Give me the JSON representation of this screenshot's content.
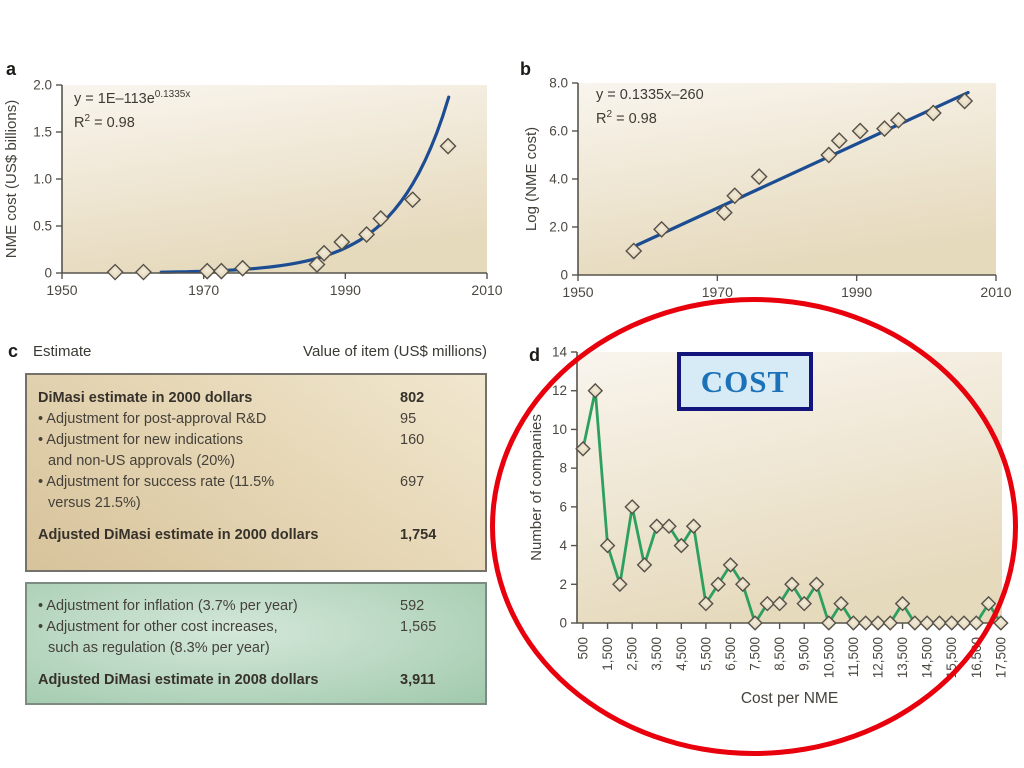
{
  "panels": {
    "a": {
      "label": "a",
      "eq_base": "y = 1E–113e",
      "eq_sup": "0.1335x",
      "r2_base": "R",
      "r2_sup": "2",
      "r2_rest": " = 0.98"
    },
    "b": {
      "label": "b",
      "eq_line": "y = 0.1335x–260",
      "r2_base": "R",
      "r2_sup": "2",
      "r2_rest": " = 0.98"
    },
    "c": {
      "label": "c",
      "header_col1": "Estimate",
      "header_col2": "Value of item (US$ millions)"
    },
    "d": {
      "label": "d"
    }
  },
  "annotations": {
    "cost_label": "COST",
    "ellipse_color": "#e8000d",
    "cost_text_color": "#1c72b8",
    "cost_bg_color": "#d7ebf7",
    "cost_border_color": "#14147d"
  },
  "colors": {
    "fit_line_blue": "#1c4d92",
    "series_green": "#2da05f",
    "marker_fill": "#e9dfc6",
    "marker_edge": "#56504a",
    "plot_bg_light": "#f9f5ee",
    "plot_bg_dark": "#e6dabd",
    "axis": "#57544c",
    "tan_box_border": "#73716a",
    "green_box_border": "#7d8c80"
  },
  "estimate_table": {
    "header_col1": "Estimate",
    "header_col2": "Value of item (US$ millions)",
    "box1_rows": [
      {
        "label": "DiMasi estimate in 2000 dollars",
        "value": "802",
        "bold": true,
        "bullet": false
      },
      {
        "label": "Adjustment for post-approval R&D",
        "value": "95",
        "bold": false,
        "bullet": true
      },
      {
        "label": "Adjustment for new indications",
        "label2": "and non-US approvals (20%)",
        "value": "160",
        "bold": false,
        "bullet": true
      },
      {
        "label": "Adjustment for success rate (11.5%",
        "label2": "versus 21.5%)",
        "value": "697",
        "bold": false,
        "bullet": true
      },
      {
        "label": "Adjusted DiMasi estimate in 2000 dollars",
        "value": "1,754",
        "bold": true,
        "bullet": false,
        "gap": true
      }
    ],
    "box2_rows": [
      {
        "label": "Adjustment for inflation (3.7% per year)",
        "value": "592",
        "bold": false,
        "bullet": true
      },
      {
        "label": "Adjustment for other cost increases,",
        "label2": "such as regulation (8.3% per year)",
        "value": "1,565",
        "bold": false,
        "bullet": true
      },
      {
        "label": "Adjusted DiMasi estimate in 2008 dollars",
        "value": "3,911",
        "bold": true,
        "bullet": false,
        "gap": true
      }
    ]
  },
  "chart_data": [
    {
      "id": "a",
      "type": "scatter",
      "title": "",
      "xlabel": "",
      "ylabel": "NME cost (US$ billions)",
      "xlim": [
        1950,
        2010
      ],
      "ylim": [
        0,
        2.0
      ],
      "xticks": [
        1950,
        1970,
        1990,
        2010
      ],
      "xtick_labels": [
        "1950",
        "1970",
        "1990",
        "2010"
      ],
      "yticks": [
        0,
        0.5,
        1.0,
        1.5,
        2.0
      ],
      "ytick_labels": [
        "0",
        "0.5",
        "1.0",
        "1.5",
        "2.0"
      ],
      "equation": "y = 1E–113e^0.1335x",
      "r_squared": "R² = 0.98",
      "points": [
        [
          1957.5,
          0.01
        ],
        [
          1961.5,
          0.01
        ],
        [
          1970.5,
          0.02
        ],
        [
          1972.5,
          0.02
        ],
        [
          1975.5,
          0.05
        ],
        [
          1986,
          0.09
        ],
        [
          1987,
          0.21
        ],
        [
          1989.5,
          0.33
        ],
        [
          1993,
          0.41
        ],
        [
          1995,
          0.58
        ],
        [
          1999.5,
          0.78
        ],
        [
          2004.5,
          1.35
        ]
      ],
      "fit": {
        "kind": "exp",
        "x_start": 1964,
        "x_end": 2004.6,
        "y_at_end": 1.87,
        "growth_rate": 0.1335
      },
      "grid": false,
      "legend": false
    },
    {
      "id": "b",
      "type": "scatter",
      "title": "",
      "xlabel": "",
      "ylabel": "Log (NME cost)",
      "xlim": [
        1950,
        2010
      ],
      "ylim": [
        0,
        8.0
      ],
      "xticks": [
        1950,
        1970,
        1990,
        2010
      ],
      "xtick_labels": [
        "1950",
        "1970",
        "1990",
        "2010"
      ],
      "yticks": [
        0,
        2.0,
        4.0,
        6.0,
        8.0
      ],
      "ytick_labels": [
        "0",
        "2.0",
        "4.0",
        "6.0",
        "8.0"
      ],
      "equation": "y = 0.1335x–260",
      "r_squared": "R² = 0.98",
      "points": [
        [
          1958,
          1.0
        ],
        [
          1962,
          1.9
        ],
        [
          1971,
          2.6
        ],
        [
          1972.5,
          3.3
        ],
        [
          1976,
          4.1
        ],
        [
          1986,
          5.0
        ],
        [
          1987.5,
          5.6
        ],
        [
          1990.5,
          6.0
        ],
        [
          1994,
          6.1
        ],
        [
          1996,
          6.45
        ],
        [
          2001,
          6.75
        ],
        [
          2005.5,
          7.25
        ]
      ],
      "fit": {
        "kind": "linear",
        "x1": 1958.5,
        "y1": 1.25,
        "x2": 2006,
        "y2": 7.6
      },
      "grid": false,
      "legend": false
    },
    {
      "id": "d",
      "type": "line",
      "title": "",
      "xlabel": "Cost per NME",
      "ylabel": "Number of companies",
      "x_start": 500,
      "x_step": 500,
      "categories": [
        500,
        1000,
        1500,
        2000,
        2500,
        3000,
        3500,
        4000,
        4500,
        5000,
        5500,
        6000,
        6500,
        7000,
        7500,
        8000,
        8500,
        9000,
        9500,
        10000,
        10500,
        11000,
        11500,
        12000,
        12500,
        13000,
        13500,
        14000,
        14500,
        15000,
        15500,
        16000,
        16500,
        17000,
        17500
      ],
      "values": [
        9,
        12,
        4,
        2,
        6,
        3,
        5,
        5,
        4,
        5,
        1,
        2,
        3,
        2,
        0,
        1,
        1,
        2,
        1,
        2,
        0,
        1,
        0,
        0,
        0,
        0,
        1,
        0,
        0,
        0,
        0,
        0,
        0,
        1,
        0
      ],
      "xtick_labels": [
        "500",
        "1,500",
        "2,500",
        "3,500",
        "4,500",
        "5,500",
        "6,500",
        "7,500",
        "8,500",
        "9,500",
        "10,500",
        "11,500",
        "12,500",
        "13,500",
        "14,500",
        "15,500",
        "16,500",
        "17,500"
      ],
      "ylim": [
        0,
        14
      ],
      "yticks": [
        0,
        2,
        4,
        6,
        8,
        10,
        12,
        14
      ],
      "ytick_labels": [
        "0",
        "2",
        "4",
        "6",
        "8",
        "10",
        "12",
        "14"
      ],
      "grid": false,
      "legend": false
    }
  ]
}
